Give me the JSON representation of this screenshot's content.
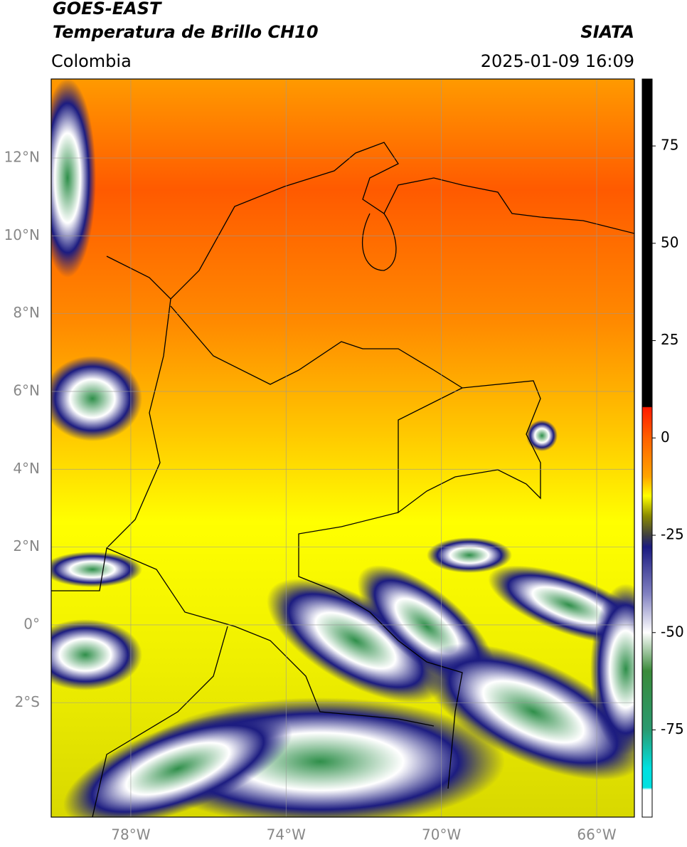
{
  "header": {
    "title": "GOES-EAST",
    "subtitle": "Temperatura de Brillo CH10",
    "agency": "SIATA",
    "region": "Colombia",
    "datetime": "2025-01-09 16:09"
  },
  "map": {
    "lonlim": [
      -80.05,
      -65.03
    ],
    "latlim": [
      -4.94,
      14.03
    ],
    "grid": true,
    "lonticks": [
      {
        "value": -78,
        "label": "78°W"
      },
      {
        "value": -74,
        "label": "74°W"
      },
      {
        "value": -70,
        "label": "70°W"
      },
      {
        "value": -66,
        "label": "66°W"
      }
    ],
    "latticks": [
      {
        "value": 12,
        "label": "12°N"
      },
      {
        "value": 10,
        "label": "10°N"
      },
      {
        "value": 8,
        "label": "8°N"
      },
      {
        "value": 6,
        "label": "6°N"
      },
      {
        "value": 4,
        "label": "4°N"
      },
      {
        "value": 2,
        "label": "2°N"
      },
      {
        "value": 0,
        "label": "0°"
      },
      {
        "value": -2,
        "label": "2°S"
      }
    ]
  },
  "colorbar": {
    "lim": [
      -97.4,
      92.2
    ],
    "ticks": [
      75,
      50,
      25,
      0,
      -25,
      -50,
      -75
    ]
  }
}
